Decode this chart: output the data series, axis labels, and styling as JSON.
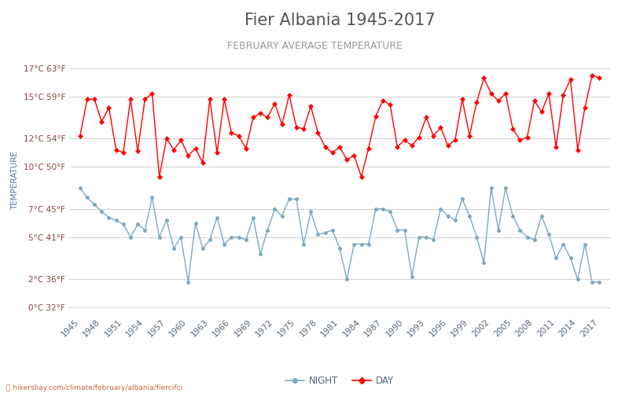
{
  "title": "Fier Albania 1945-2017",
  "subtitle": "FEBRUARY AVERAGE TEMPERATURE",
  "ylabel": "TEMPERATURE",
  "xlabel_url": "hikersbay.com/climate/february/albania/fiercifci",
  "yticks_c": [
    0,
    2,
    5,
    7,
    10,
    12,
    15,
    17
  ],
  "yticks_f": [
    32,
    36,
    41,
    45,
    50,
    54,
    59,
    63
  ],
  "ylim": [
    -0.5,
    18.5
  ],
  "years": [
    1945,
    1946,
    1947,
    1948,
    1949,
    1950,
    1951,
    1952,
    1953,
    1954,
    1955,
    1956,
    1957,
    1958,
    1959,
    1960,
    1961,
    1962,
    1963,
    1964,
    1965,
    1966,
    1967,
    1968,
    1969,
    1970,
    1971,
    1972,
    1973,
    1974,
    1975,
    1976,
    1977,
    1978,
    1979,
    1980,
    1981,
    1982,
    1983,
    1984,
    1985,
    1986,
    1987,
    1988,
    1989,
    1990,
    1991,
    1992,
    1993,
    1994,
    1995,
    1996,
    1997,
    1998,
    1999,
    2000,
    2001,
    2002,
    2003,
    2004,
    2005,
    2006,
    2007,
    2008,
    2009,
    2010,
    2011,
    2012,
    2013,
    2014,
    2015,
    2016,
    2017
  ],
  "day_temps": [
    12.2,
    14.8,
    14.8,
    13.2,
    14.2,
    11.2,
    11.0,
    14.8,
    11.1,
    14.8,
    15.2,
    9.3,
    12.0,
    11.2,
    11.9,
    10.8,
    11.3,
    10.3,
    14.8,
    11.0,
    14.8,
    12.4,
    12.2,
    11.3,
    13.5,
    13.8,
    13.5,
    14.5,
    13.0,
    15.1,
    12.8,
    12.7,
    14.3,
    12.4,
    11.4,
    11.0,
    11.4,
    10.5,
    10.8,
    9.3,
    11.3,
    13.6,
    14.7,
    14.4,
    11.4,
    11.9,
    11.5,
    12.1,
    13.5,
    12.2,
    12.8,
    11.5,
    11.9,
    14.8,
    12.2,
    14.6,
    16.3,
    15.2,
    14.7,
    15.2,
    12.7,
    11.9,
    12.1,
    14.7,
    13.9,
    15.2,
    11.4,
    15.1,
    16.2,
    11.2,
    14.2,
    16.5,
    16.3
  ],
  "night_temps": [
    8.5,
    7.8,
    7.3,
    6.8,
    6.4,
    6.2,
    5.9,
    5.0,
    5.9,
    5.5,
    7.8,
    5.0,
    6.2,
    4.2,
    5.0,
    1.8,
    6.0,
    4.2,
    4.8,
    6.4,
    4.5,
    5.0,
    5.0,
    4.8,
    6.4,
    3.8,
    5.5,
    7.0,
    6.5,
    7.7,
    7.7,
    4.5,
    6.8,
    5.2,
    5.3,
    5.5,
    4.2,
    2.0,
    4.5,
    4.5,
    4.5,
    7.0,
    7.0,
    6.8,
    5.5,
    5.5,
    2.2,
    5.0,
    5.0,
    4.8,
    7.0,
    6.5,
    6.2,
    7.7,
    6.5,
    5.0,
    3.2,
    8.5,
    5.5,
    8.5,
    6.5,
    5.5,
    5.0,
    4.8,
    6.5,
    5.2,
    3.5,
    4.5,
    3.5,
    2.0,
    4.5,
    1.8,
    1.8
  ],
  "day_color": "#ff0000",
  "night_color": "#7fa8c0",
  "background_color": "#ffffff",
  "grid_color": "#d0d0d0",
  "title_color": "#555555",
  "subtitle_color": "#999999",
  "ylabel_color": "#5577aa",
  "ytick_color": "#884444",
  "xtick_color": "#556677",
  "title_fontsize": 15,
  "subtitle_fontsize": 9,
  "ylabel_fontsize": 7.5,
  "tick_fontsize": 7.5,
  "legend_fontsize": 8.5
}
